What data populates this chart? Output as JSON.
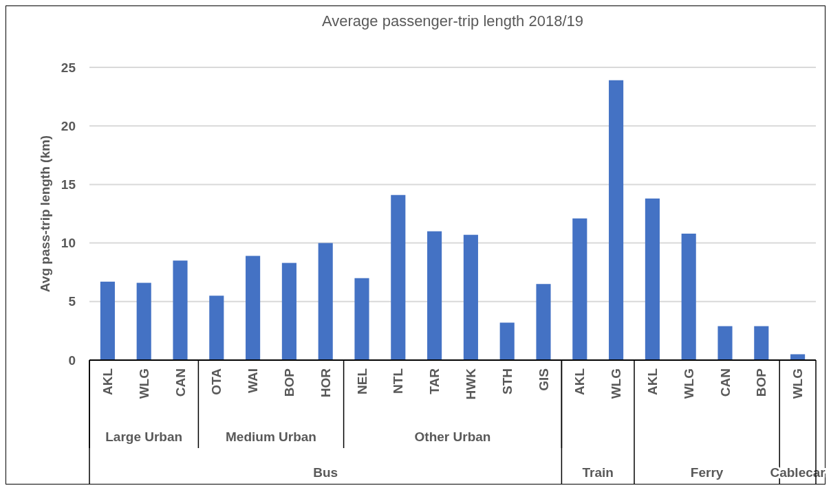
{
  "chart_data": {
    "type": "bar",
    "title": "Average passenger-trip length 2018/19",
    "ylabel": "Avg pass-trip length (km)",
    "categories": [
      "AKL",
      "WLG",
      "CAN",
      "OTA",
      "WAI",
      "BOP",
      "HOR",
      "NEL",
      "NTL",
      "TAR",
      "HWK",
      "STH",
      "GIS",
      "AKL",
      "WLG",
      "AKL",
      "WLG",
      "CAN",
      "BOP",
      "WLG"
    ],
    "values": [
      6.7,
      6.6,
      8.5,
      5.5,
      8.9,
      8.3,
      10.0,
      7.0,
      14.1,
      11.0,
      10.7,
      3.2,
      6.5,
      12.1,
      23.9,
      13.8,
      10.8,
      2.9,
      2.9,
      0.5
    ],
    "color": "#4472c4",
    "ylim": [
      0,
      25
    ],
    "yticks": [
      0,
      5,
      10,
      15,
      20,
      25
    ],
    "grid": "y",
    "annotations": [
      "Large Urban",
      "Medium Urban",
      "Other Urban",
      "Bus",
      "Train",
      "Ferry",
      "Cablecar"
    ]
  }
}
